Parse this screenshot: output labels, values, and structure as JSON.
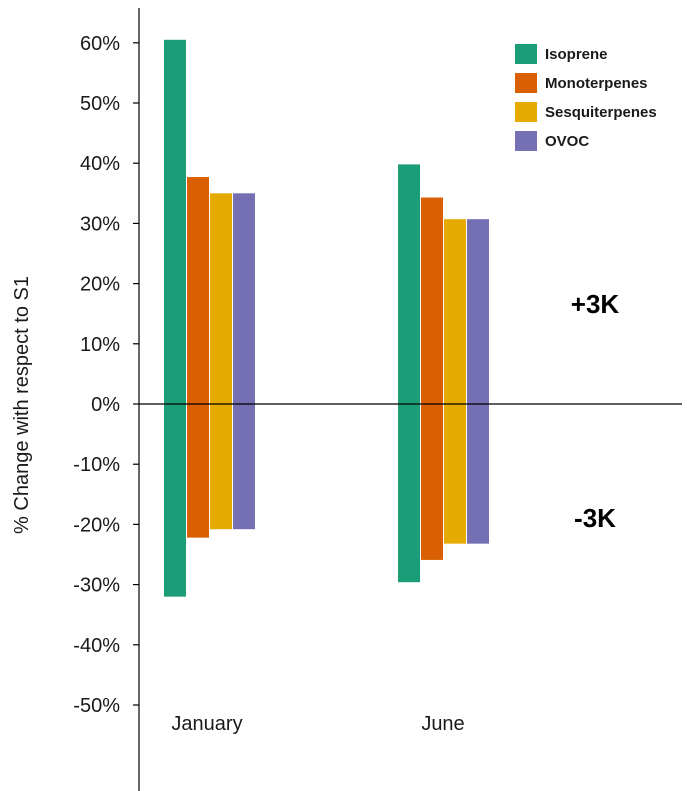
{
  "chart_data": {
    "type": "bar",
    "ylabel": "% Change with respect to S1",
    "ylim": [
      -50,
      60
    ],
    "yticks": [
      60,
      50,
      40,
      30,
      20,
      10,
      0,
      -10,
      -20,
      -30,
      -40,
      -50
    ],
    "ytick_labels": [
      "60%",
      "50%",
      "40%",
      "30%",
      "20%",
      "10%",
      "0%",
      "-10%",
      "-20%",
      "-30%",
      "-40%",
      "-50%"
    ],
    "categories": [
      "January",
      "June"
    ],
    "series": [
      {
        "name": "Isoprene",
        "color": "#1b9e77",
        "plus3K": [
          60.5,
          39.8
        ],
        "minus3K": [
          -32.0,
          -29.6
        ]
      },
      {
        "name": "Monoterpenes",
        "color": "#d95f02",
        "plus3K": [
          37.7,
          34.3
        ],
        "minus3K": [
          -22.2,
          -25.9
        ]
      },
      {
        "name": "Sesquiterpenes",
        "color": "#e6ab02",
        "plus3K": [
          35.0,
          30.7
        ],
        "minus3K": [
          -20.8,
          -23.2
        ]
      },
      {
        "name": "OVOC",
        "color": "#7570b3",
        "plus3K": [
          35.0,
          30.7
        ],
        "minus3K": [
          -20.8,
          -23.2
        ]
      }
    ],
    "annotations": [
      "+3K",
      "-3K"
    ],
    "legend_position": "top-right",
    "grid": false
  }
}
